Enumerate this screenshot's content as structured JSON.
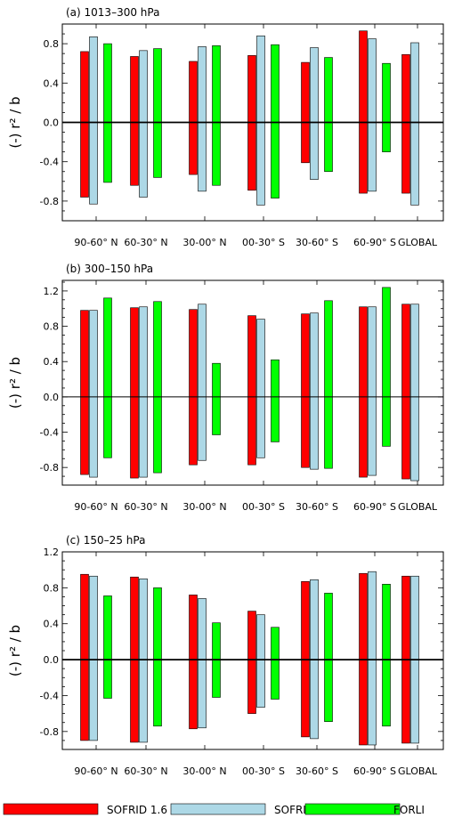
{
  "legend": [
    {
      "name": "SOFRID 1.6",
      "color": "#ff0000"
    },
    {
      "name": "SOFRID 3.5",
      "color": "#add8e6"
    },
    {
      "name": "FORLI",
      "color": "#00ff00"
    }
  ],
  "chart_data": [
    {
      "type": "bar",
      "title": "(a) 1013–300 hPa",
      "ylabel": "(-) r² / b",
      "categories": [
        "90-60° N",
        "60-30° N",
        "30-00° N",
        "00-30° S",
        "30-60° S",
        "60-90° S",
        "GLOBAL"
      ],
      "ylim": [
        -1.0,
        1.0
      ],
      "yticks": [
        -0.8,
        -0.4,
        0.0,
        0.4,
        0.8
      ],
      "ytick_labels": [
        "-0.8",
        "-0.4",
        "0.0",
        "0.4",
        "0.8"
      ],
      "series": [
        {
          "name": "SOFRID 1.6",
          "pos": [
            0.72,
            0.67,
            0.62,
            0.68,
            0.61,
            0.93,
            0.69
          ],
          "neg": [
            -0.76,
            -0.64,
            -0.53,
            -0.69,
            -0.41,
            -0.72,
            -0.72
          ]
        },
        {
          "name": "SOFRID 3.5",
          "pos": [
            0.87,
            0.73,
            0.77,
            0.88,
            0.76,
            0.85,
            0.81
          ],
          "neg": [
            -0.83,
            -0.76,
            -0.7,
            -0.84,
            -0.58,
            -0.7,
            -0.84
          ]
        },
        {
          "name": "FORLI",
          "pos": [
            0.8,
            0.75,
            0.78,
            0.79,
            0.66,
            0.6,
            null
          ],
          "neg": [
            -0.61,
            -0.56,
            -0.64,
            -0.77,
            -0.5,
            -0.3,
            null
          ]
        }
      ]
    },
    {
      "type": "bar",
      "title": "(b) 300–150 hPa",
      "ylabel": "(-) r² / b",
      "categories": [
        "90-60° N",
        "60-30° N",
        "30-00° N",
        "00-30° S",
        "30-60° S",
        "60-90° S",
        "GLOBAL"
      ],
      "ylim": [
        -1.0,
        1.32
      ],
      "yticks": [
        -0.8,
        -0.4,
        0.0,
        0.4,
        0.8,
        1.2
      ],
      "ytick_labels": [
        "-0.8",
        "-0.4",
        "0.0",
        "0.4",
        "0.8",
        "1.2"
      ],
      "series": [
        {
          "name": "SOFRID 1.6",
          "pos": [
            0.98,
            1.01,
            0.99,
            0.92,
            0.94,
            1.02,
            1.05
          ],
          "neg": [
            -0.88,
            -0.92,
            -0.77,
            -0.77,
            -0.8,
            -0.91,
            -0.93
          ]
        },
        {
          "name": "SOFRID 3.5",
          "pos": [
            0.98,
            1.02,
            1.05,
            0.88,
            0.95,
            1.02,
            1.05
          ],
          "neg": [
            -0.91,
            -0.91,
            -0.72,
            -0.69,
            -0.82,
            -0.89,
            -0.95
          ]
        },
        {
          "name": "FORLI",
          "pos": [
            1.12,
            1.08,
            0.38,
            0.42,
            1.09,
            1.24,
            null
          ],
          "neg": [
            -0.69,
            -0.86,
            -0.43,
            -0.51,
            -0.81,
            -0.56,
            null
          ]
        }
      ]
    },
    {
      "type": "bar",
      "title": "(c) 150–25 hPa",
      "ylabel": "(-) r² / b",
      "categories": [
        "90-60° N",
        "60-30° N",
        "30-00° N",
        "00-30° S",
        "30-60° S",
        "60-90° S",
        "GLOBAL"
      ],
      "ylim": [
        -1.0,
        1.2
      ],
      "yticks": [
        -0.8,
        -0.4,
        0.0,
        0.4,
        0.8,
        1.2
      ],
      "ytick_labels": [
        "-0.8",
        "-0.4",
        "0.0",
        "0.4",
        "0.8",
        "1.2"
      ],
      "series": [
        {
          "name": "SOFRID 1.6",
          "pos": [
            0.95,
            0.92,
            0.72,
            0.54,
            0.87,
            0.96,
            0.93
          ],
          "neg": [
            -0.9,
            -0.92,
            -0.77,
            -0.6,
            -0.86,
            -0.95,
            -0.93
          ]
        },
        {
          "name": "SOFRID 3.5",
          "pos": [
            0.93,
            0.9,
            0.68,
            0.5,
            0.89,
            0.98,
            0.93
          ],
          "neg": [
            -0.9,
            -0.92,
            -0.76,
            -0.53,
            -0.88,
            -0.95,
            -0.93
          ]
        },
        {
          "name": "FORLI",
          "pos": [
            0.71,
            0.8,
            0.41,
            0.36,
            0.74,
            0.84,
            null
          ],
          "neg": [
            -0.43,
            -0.74,
            -0.42,
            -0.44,
            -0.69,
            -0.74,
            null
          ]
        }
      ]
    }
  ]
}
